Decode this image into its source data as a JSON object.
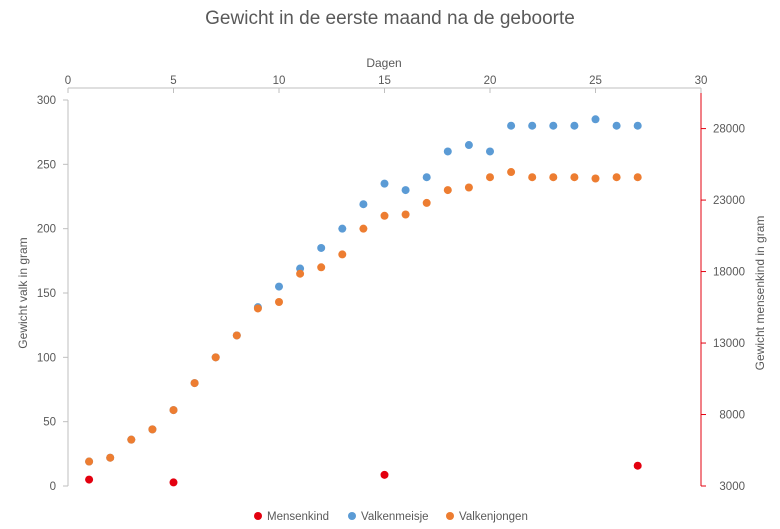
{
  "chart_data": {
    "type": "scatter",
    "title": "Gewicht in de eerste maand na de geboorte",
    "xlabel": "Dagen",
    "ylabel_left": "Gewicht valk in gram",
    "ylabel_right": "Gewicht mensenkind in gram",
    "xlim": [
      0,
      30
    ],
    "ylim_left": [
      0,
      300
    ],
    "ylim_right": [
      3000,
      30000
    ],
    "x_ticks": [
      0,
      5,
      10,
      15,
      20,
      25,
      30
    ],
    "y_left_ticks": [
      0,
      50,
      100,
      150,
      200,
      250,
      300
    ],
    "y_right_ticks": [
      3000,
      8000,
      13000,
      18000,
      23000,
      28000
    ],
    "grid": false,
    "legend_position": "bottom",
    "series": [
      {
        "name": "Mensenkind",
        "axis": "right",
        "color": "#e3000f",
        "x": [
          1,
          5,
          15,
          27
        ],
        "y": [
          3450,
          3250,
          3780,
          4420
        ]
      },
      {
        "name": "Valkenmeisje",
        "axis": "left",
        "color": "#5b9bd5",
        "x": [
          1,
          2,
          3,
          4,
          5,
          6,
          7,
          8,
          9,
          10,
          11,
          12,
          13,
          14,
          15,
          16,
          17,
          18,
          19,
          20,
          21,
          22,
          23,
          24,
          25,
          26,
          27
        ],
        "y": [
          19,
          22,
          36,
          44,
          59,
          80,
          100,
          117,
          139,
          155,
          169,
          185,
          200,
          219,
          235,
          230,
          240,
          260,
          265,
          260,
          280,
          280,
          280,
          280,
          285,
          280,
          280
        ]
      },
      {
        "name": "Valkenjongen",
        "axis": "left",
        "color": "#ed7d31",
        "x": [
          1,
          2,
          3,
          4,
          5,
          6,
          7,
          8,
          9,
          10,
          11,
          12,
          13,
          14,
          15,
          16,
          17,
          18,
          19,
          20,
          21,
          22,
          23,
          24,
          25,
          26,
          27
        ],
        "y": [
          19,
          22,
          36,
          44,
          59,
          80,
          100,
          117,
          138,
          143,
          165,
          170,
          180,
          200,
          210,
          211,
          220,
          230,
          232,
          240,
          244,
          240,
          240,
          240,
          239,
          240,
          240
        ]
      }
    ]
  }
}
